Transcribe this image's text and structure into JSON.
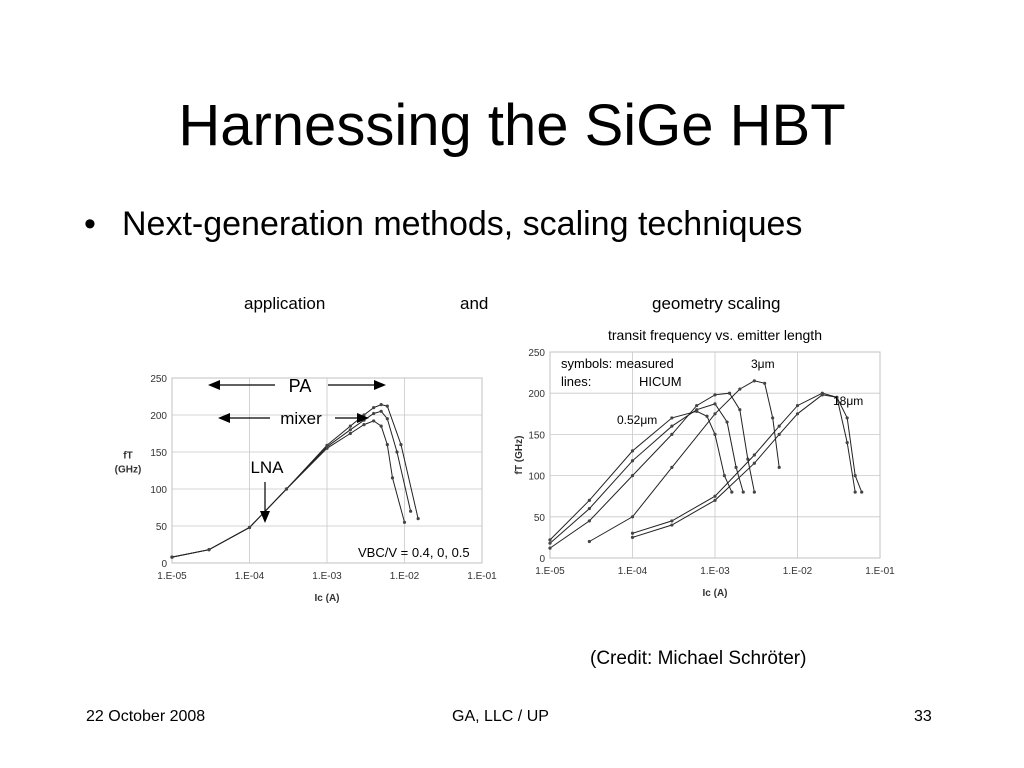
{
  "slide": {
    "title": "Harnessing the SiGe HBT",
    "bullet": "Next-generation methods, scaling techniques",
    "caption_application": "application",
    "caption_and": "and",
    "caption_geometry": "geometry scaling",
    "credit": "(Credit: Michael Schröter)",
    "footer_date": "22 October 2008",
    "footer_center": "GA, LLC / UP",
    "page_number": "33"
  },
  "chart_data": [
    {
      "type": "line",
      "title": "",
      "xlabel": "Ic (A)",
      "ylabel": "fT (GHz)",
      "xscale": "log",
      "xlim": [
        1e-05,
        0.1
      ],
      "ylim": [
        0,
        250
      ],
      "x_ticks": [
        "1.E-05",
        "1.E-04",
        "1.E-03",
        "1.E-02",
        "1.E-01"
      ],
      "y_ticks": [
        "250",
        "200",
        "150",
        "100",
        "50",
        "0"
      ],
      "grid": true,
      "annotations": [
        "PA",
        "mixer",
        "LNA",
        "VBC/V = 0.4, 0, 0.5"
      ],
      "series": [
        {
          "x": [
            1e-05,
            3e-05,
            0.0001,
            0.0003,
            0.001,
            0.002,
            0.003,
            0.004,
            0.005,
            0.006,
            0.007,
            0.01
          ],
          "y": [
            8,
            18,
            48,
            100,
            155,
            175,
            187,
            192,
            185,
            160,
            115,
            55
          ]
        },
        {
          "x": [
            1e-05,
            3e-05,
            0.0001,
            0.0003,
            0.001,
            0.002,
            0.003,
            0.004,
            0.005,
            0.006,
            0.008,
            0.012
          ],
          "y": [
            8,
            18,
            48,
            100,
            157,
            180,
            193,
            202,
            205,
            195,
            150,
            70
          ]
        },
        {
          "x": [
            1e-05,
            3e-05,
            0.0001,
            0.0003,
            0.001,
            0.002,
            0.003,
            0.004,
            0.005,
            0.006,
            0.009,
            0.015
          ],
          "y": [
            8,
            18,
            48,
            100,
            159,
            185,
            200,
            210,
            214,
            212,
            160,
            60
          ]
        }
      ]
    },
    {
      "type": "line",
      "title": "transit frequency vs. emitter length",
      "xlabel": "Ic (A)",
      "ylabel": "fT (GHz)",
      "xscale": "log",
      "xlim": [
        1e-05,
        0.1
      ],
      "ylim": [
        0,
        250
      ],
      "x_ticks": [
        "1.E-05",
        "1.E-04",
        "1.E-03",
        "1.E-02",
        "1.E-01"
      ],
      "y_ticks": [
        "250",
        "200",
        "150",
        "100",
        "50",
        "0"
      ],
      "grid": true,
      "annotations": [
        "symbols: measured",
        "lines:",
        "HICUM",
        "3μm",
        "18μm",
        "0.52μm"
      ],
      "series": [
        {
          "x": [
            1e-05,
            3e-05,
            0.0001,
            0.0003,
            0.0006,
            0.0008,
            0.001,
            0.0013,
            0.0016
          ],
          "y": [
            22,
            70,
            130,
            170,
            178,
            172,
            150,
            100,
            80
          ]
        },
        {
          "x": [
            1e-05,
            3e-05,
            0.0001,
            0.0003,
            0.0006,
            0.001,
            0.0014,
            0.0018,
            0.0022
          ],
          "y": [
            18,
            60,
            118,
            160,
            180,
            187,
            165,
            110,
            80
          ]
        },
        {
          "x": [
            1e-05,
            3e-05,
            0.0001,
            0.0003,
            0.0006,
            0.001,
            0.0015,
            0.002,
            0.0025,
            0.003
          ],
          "y": [
            12,
            45,
            100,
            150,
            185,
            198,
            200,
            180,
            120,
            80
          ]
        },
        {
          "x": [
            3e-05,
            0.0001,
            0.0003,
            0.001,
            0.002,
            0.003,
            0.004,
            0.005,
            0.006
          ],
          "y": [
            20,
            50,
            110,
            175,
            205,
            215,
            212,
            170,
            110
          ]
        },
        {
          "x": [
            0.0001,
            0.0003,
            0.001,
            0.003,
            0.006,
            0.01,
            0.02,
            0.03,
            0.04,
            0.05
          ],
          "y": [
            30,
            45,
            75,
            125,
            160,
            185,
            200,
            195,
            140,
            80
          ]
        },
        {
          "x": [
            0.0001,
            0.0003,
            0.001,
            0.003,
            0.006,
            0.01,
            0.02,
            0.03,
            0.04,
            0.05,
            0.06
          ],
          "y": [
            25,
            40,
            70,
            115,
            150,
            175,
            198,
            195,
            170,
            100,
            80
          ]
        }
      ]
    }
  ]
}
